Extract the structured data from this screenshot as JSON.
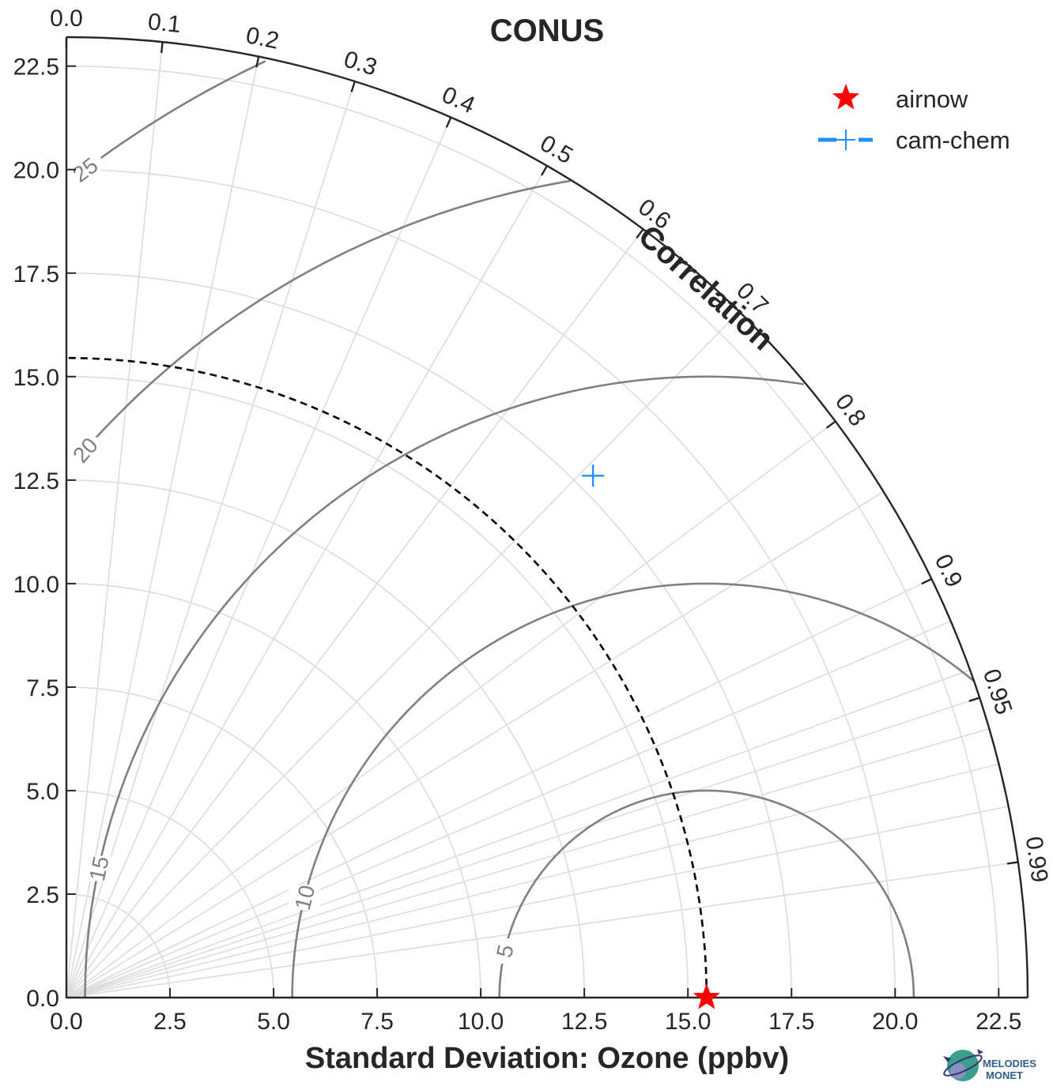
{
  "chart_data": {
    "type": "scatter",
    "subtype": "taylor-diagram",
    "title": "CONUS",
    "xlabel": "Standard Deviation: Ozone (ppbv)",
    "ylabel": "",
    "angle_label": "Correlation",
    "std_range": [
      0,
      23.2
    ],
    "std_ticks": [
      "0.0",
      "2.5",
      "5.0",
      "7.5",
      "10.0",
      "12.5",
      "15.0",
      "17.5",
      "20.0",
      "22.5"
    ],
    "correlation_ticks": [
      "0.0",
      "0.1",
      "0.2",
      "0.3",
      "0.4",
      "0.5",
      "0.6",
      "0.7",
      "0.8",
      "0.9",
      "0.95",
      "0.99"
    ],
    "rms_contours": [
      "5",
      "10",
      "15",
      "20",
      "25"
    ],
    "reference_std": 15.45,
    "grid": true,
    "legend_position": "top-right",
    "series": [
      {
        "name": "airnow",
        "marker": "star",
        "color": "#ff0000",
        "std": 15.45,
        "correlation": 1.0
      },
      {
        "name": "cam-chem",
        "marker": "plus",
        "color": "#1e90ff",
        "std": 17.9,
        "correlation": 0.71
      }
    ]
  },
  "logo": {
    "text_line1": "MELODIES",
    "text_line2": "MONET"
  },
  "colors": {
    "axis": "#262626",
    "grid": "#dcdcdc",
    "rms": "#808080",
    "reference": "#000000"
  }
}
